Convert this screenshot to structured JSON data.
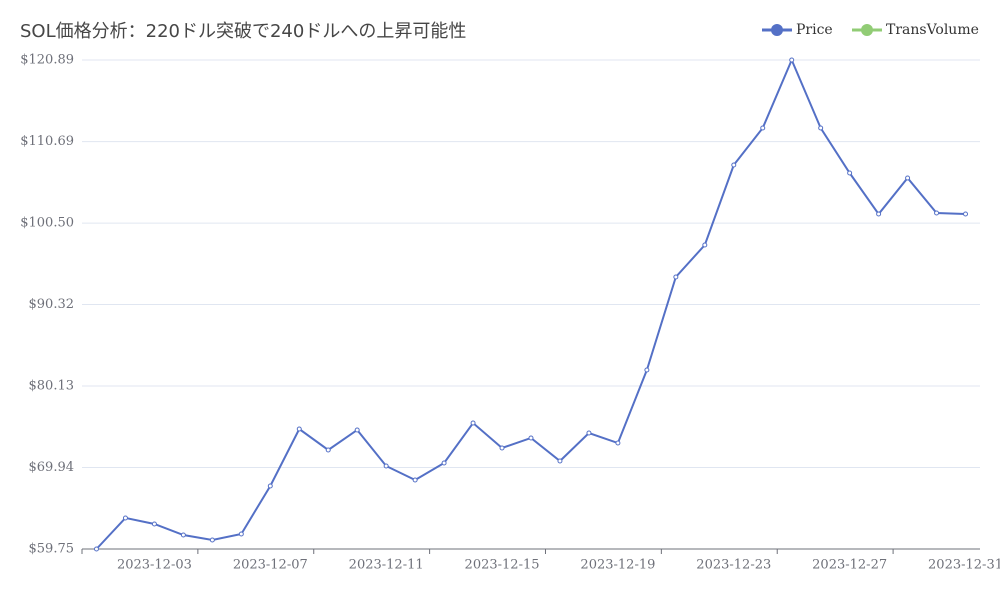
{
  "chart_data": {
    "type": "line",
    "title": "SOL価格分析：220ドル突破で240ドルへの上昇可能性",
    "categories": [
      null,
      null,
      "2023-12-03",
      null,
      null,
      null,
      "2023-12-07",
      null,
      null,
      null,
      "2023-12-11",
      null,
      null,
      null,
      "2023-12-15",
      null,
      null,
      null,
      "2023-12-19",
      null,
      null,
      null,
      "2023-12-23",
      null,
      null,
      null,
      "2023-12-27",
      null,
      null,
      null,
      "2023-12-31"
    ],
    "series": [
      {
        "name": "Price",
        "color": "#5470c6",
        "values": [
          59.75,
          63.63,
          62.88,
          61.5,
          60.88,
          61.63,
          67.63,
          74.75,
          72.13,
          74.63,
          70.13,
          68.38,
          70.5,
          75.5,
          72.38,
          73.63,
          70.75,
          74.25,
          73.0,
          82.13,
          93.76,
          97.76,
          107.76,
          112.39,
          120.89,
          112.39,
          106.76,
          101.63,
          106.14,
          101.76,
          101.63
        ]
      },
      {
        "name": "TransVolume",
        "color": "#91cc75",
        "values": [
          null,
          null,
          null,
          null,
          null,
          null,
          null,
          null,
          null,
          null,
          null,
          null,
          null,
          null,
          null,
          null,
          null,
          null,
          null,
          null,
          null,
          null,
          null,
          null,
          null,
          null,
          null,
          null,
          null,
          null,
          null
        ]
      }
    ],
    "ylim": [
      59.75,
      120.89
    ],
    "yticks": [
      {
        "value": 59.75,
        "label": "$59.75"
      },
      {
        "value": 69.94,
        "label": "$69.94"
      },
      {
        "value": 80.13,
        "label": "$80.13"
      },
      {
        "value": 90.32,
        "label": "$90.32"
      },
      {
        "value": 100.5,
        "label": "$100.50"
      },
      {
        "value": 110.69,
        "label": "$110.69"
      },
      {
        "value": 120.89,
        "label": "$120.89"
      }
    ],
    "grid": true
  }
}
